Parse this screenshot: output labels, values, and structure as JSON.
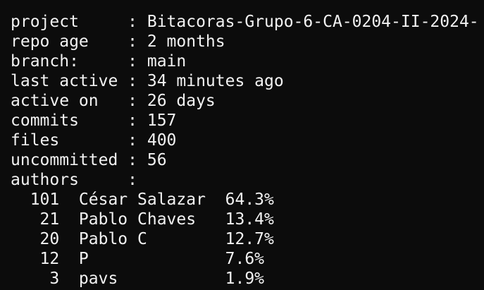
{
  "separator": ":",
  "summary": [
    {
      "key": "project",
      "value": "Bitacoras-Grupo-6-CA-0204-II-2024-"
    },
    {
      "key": "repo age",
      "value": "2 months"
    },
    {
      "key": "branch:",
      "value": "main"
    },
    {
      "key": "last active",
      "value": "34 minutes ago"
    },
    {
      "key": "active on",
      "value": "26 days"
    },
    {
      "key": "commits",
      "value": "157"
    },
    {
      "key": "files",
      "value": "400"
    },
    {
      "key": "uncommitted",
      "value": "56"
    },
    {
      "key": "authors",
      "value": ""
    }
  ],
  "authors": [
    {
      "commits": "101",
      "name": "César Salazar",
      "percent": "64.3%"
    },
    {
      "commits": "21",
      "name": "Pablo Chaves",
      "percent": "13.4%"
    },
    {
      "commits": "20",
      "name": "Pablo C",
      "percent": "12.7%"
    },
    {
      "commits": "12",
      "name": "P",
      "percent": "7.6%"
    },
    {
      "commits": "3",
      "name": "pavs",
      "percent": "1.9%"
    }
  ]
}
